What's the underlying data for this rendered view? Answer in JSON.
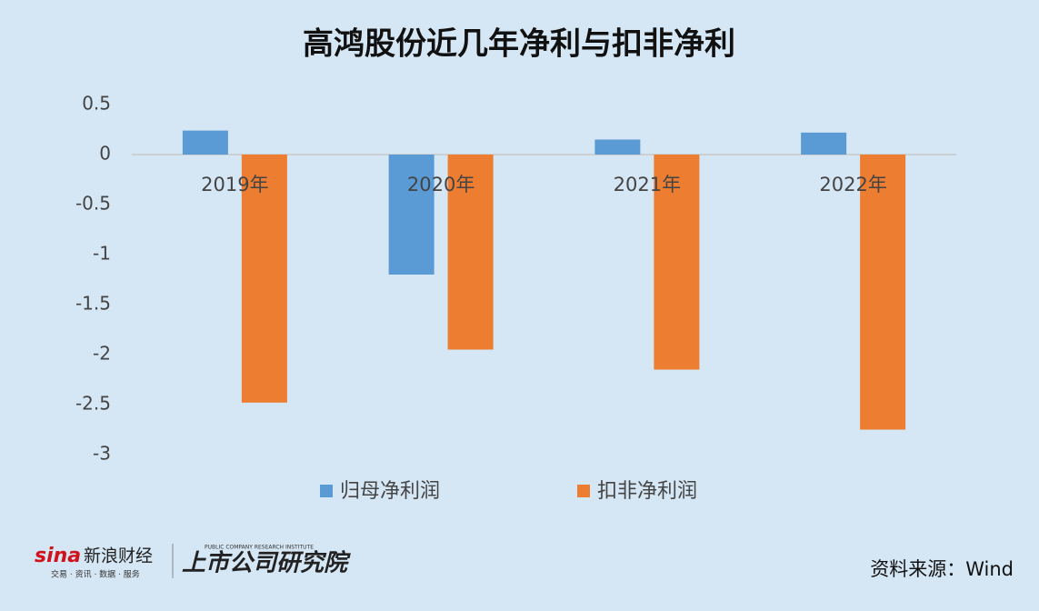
{
  "chart_data": {
    "type": "bar",
    "title": "高鸿股份近几年净利与扣非净利",
    "categories": [
      "2019年",
      "2020年",
      "2021年",
      "2022年"
    ],
    "series": [
      {
        "name": "归母净利润",
        "color": "#5b9bd5",
        "values": [
          0.24,
          -1.2,
          0.15,
          0.22
        ]
      },
      {
        "name": "扣非净利润",
        "color": "#ed7d31",
        "values": [
          -2.48,
          -1.95,
          -2.15,
          -2.75
        ]
      }
    ],
    "ylim": [
      -3,
      0.5
    ],
    "yticks": [
      0.5,
      0,
      -0.5,
      -1,
      -1.5,
      -2,
      -2.5,
      -3
    ],
    "grid": false,
    "legend": "bottom"
  },
  "footer": {
    "source": "资料来源：Wind",
    "logo_sina": "sina",
    "logo_sina_name": "新浪财经",
    "logo_sina_tagline": "交易 · 资讯 · 数据 · 服务",
    "logo_institute": "上市公司研究院",
    "logo_institute_en": "PUBLIC COMPANY RESEARCH INSTITUTE"
  }
}
